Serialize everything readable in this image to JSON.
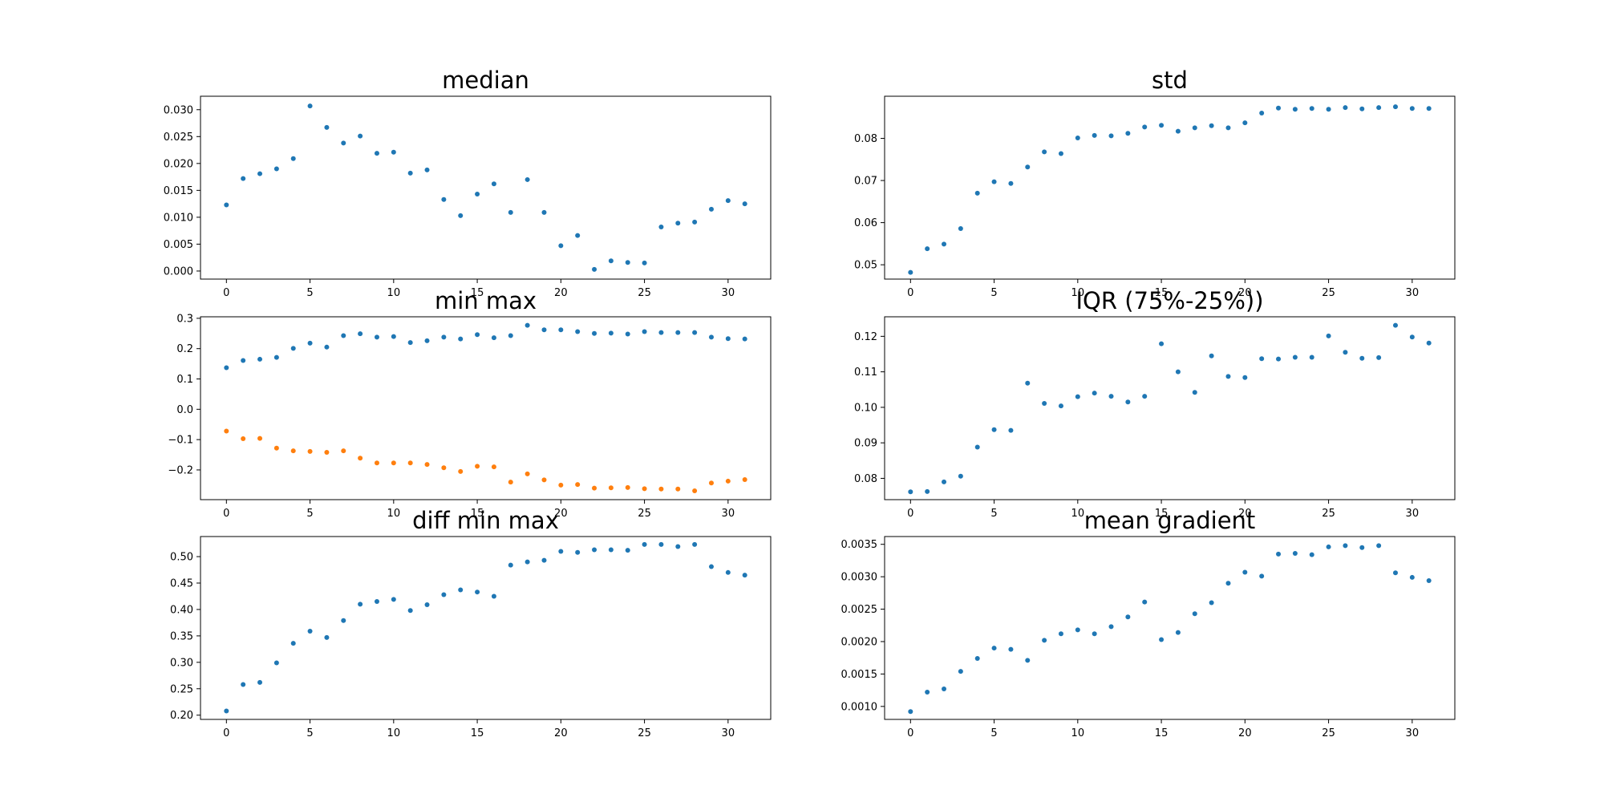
{
  "chart_data": [
    {
      "id": "median",
      "type": "scatter",
      "title": "median",
      "xlabel": "",
      "ylabel": "",
      "xlim": [
        -1.55,
        32.55
      ],
      "ylim": [
        -0.0015,
        0.0325
      ],
      "xticks": [
        0,
        5,
        10,
        15,
        20,
        25,
        30
      ],
      "xtick_labels": [
        "0",
        "5",
        "10",
        "15",
        "20",
        "25",
        "30"
      ],
      "yticks": [
        0.0,
        0.005,
        0.01,
        0.015,
        0.02,
        0.025,
        0.03
      ],
      "ytick_labels": [
        "0.000",
        "0.005",
        "0.010",
        "0.015",
        "0.020",
        "0.025",
        "0.030"
      ],
      "grid": false,
      "series": [
        {
          "color": "#1f77b4",
          "x": [
            0,
            1,
            2,
            3,
            4,
            5,
            6,
            7,
            8,
            9,
            10,
            11,
            12,
            13,
            14,
            15,
            16,
            17,
            18,
            19,
            20,
            21,
            22,
            23,
            24,
            25,
            26,
            27,
            28,
            29,
            30,
            31
          ],
          "y": [
            0.0123,
            0.0172,
            0.0181,
            0.019,
            0.0209,
            0.0307,
            0.0267,
            0.0238,
            0.0251,
            0.0219,
            0.0221,
            0.0182,
            0.0188,
            0.0133,
            0.0103,
            0.0143,
            0.0162,
            0.0109,
            0.017,
            0.0109,
            0.0047,
            0.0066,
            0.0003,
            0.0019,
            0.0016,
            0.0015,
            0.0082,
            0.0089,
            0.0091,
            0.0115,
            0.0131,
            0.0125
          ]
        }
      ]
    },
    {
      "id": "std",
      "type": "scatter",
      "title": "std",
      "xlabel": "",
      "ylabel": "",
      "xlim": [
        -1.55,
        32.55
      ],
      "ylim": [
        0.0466,
        0.09
      ],
      "xticks": [
        0,
        5,
        10,
        15,
        20,
        25,
        30
      ],
      "xtick_labels": [
        "0",
        "5",
        "10",
        "15",
        "20",
        "25",
        "30"
      ],
      "yticks": [
        0.05,
        0.06,
        0.07,
        0.08
      ],
      "ytick_labels": [
        "0.05",
        "0.06",
        "0.07",
        "0.08"
      ],
      "grid": false,
      "series": [
        {
          "color": "#1f77b4",
          "x": [
            0,
            1,
            2,
            3,
            4,
            5,
            6,
            7,
            8,
            9,
            10,
            11,
            12,
            13,
            14,
            15,
            16,
            17,
            18,
            19,
            20,
            21,
            22,
            23,
            24,
            25,
            26,
            27,
            28,
            29,
            30,
            31
          ],
          "y": [
            0.0482,
            0.0538,
            0.0549,
            0.0586,
            0.067,
            0.0697,
            0.0693,
            0.0732,
            0.0768,
            0.0764,
            0.0801,
            0.0807,
            0.0806,
            0.0812,
            0.0827,
            0.0831,
            0.0817,
            0.0825,
            0.083,
            0.0825,
            0.0837,
            0.086,
            0.0872,
            0.0869,
            0.0871,
            0.0869,
            0.0873,
            0.087,
            0.0873,
            0.0875,
            0.0871,
            0.0871
          ]
        }
      ]
    },
    {
      "id": "min-max",
      "type": "scatter",
      "title": "min max",
      "xlabel": "",
      "ylabel": "",
      "xlim": [
        -1.55,
        32.55
      ],
      "ylim": [
        -0.298,
        0.305
      ],
      "xticks": [
        0,
        5,
        10,
        15,
        20,
        25,
        30
      ],
      "xtick_labels": [
        "0",
        "5",
        "10",
        "15",
        "20",
        "25",
        "30"
      ],
      "yticks": [
        -0.2,
        -0.1,
        0.0,
        0.1,
        0.2,
        0.3
      ],
      "ytick_labels": [
        "−0.2",
        "−0.1",
        "0.0",
        "0.1",
        "0.2",
        "0.3"
      ],
      "grid": false,
      "series": [
        {
          "color": "#1f77b4",
          "x": [
            0,
            1,
            2,
            3,
            4,
            5,
            6,
            7,
            8,
            9,
            10,
            11,
            12,
            13,
            14,
            15,
            16,
            17,
            18,
            19,
            20,
            21,
            22,
            23,
            24,
            25,
            26,
            27,
            28,
            29,
            30,
            31
          ],
          "y": [
            0.137,
            0.161,
            0.165,
            0.171,
            0.201,
            0.218,
            0.205,
            0.243,
            0.249,
            0.238,
            0.24,
            0.22,
            0.226,
            0.238,
            0.232,
            0.246,
            0.236,
            0.243,
            0.277,
            0.262,
            0.262,
            0.256,
            0.25,
            0.251,
            0.248,
            0.256,
            0.253,
            0.253,
            0.253,
            0.238,
            0.233,
            0.232
          ]
        },
        {
          "color": "#ff7f0e",
          "x": [
            0,
            1,
            2,
            3,
            4,
            5,
            6,
            7,
            8,
            9,
            10,
            11,
            12,
            13,
            14,
            15,
            16,
            17,
            18,
            19,
            20,
            21,
            22,
            23,
            24,
            25,
            26,
            27,
            28,
            29,
            30,
            31
          ],
          "y": [
            -0.072,
            -0.097,
            -0.096,
            -0.128,
            -0.137,
            -0.139,
            -0.142,
            -0.137,
            -0.161,
            -0.177,
            -0.177,
            -0.177,
            -0.182,
            -0.193,
            -0.205,
            -0.188,
            -0.19,
            -0.24,
            -0.213,
            -0.233,
            -0.25,
            -0.248,
            -0.26,
            -0.259,
            -0.258,
            -0.262,
            -0.263,
            -0.263,
            -0.269,
            -0.243,
            -0.237,
            -0.232
          ]
        }
      ]
    },
    {
      "id": "iqr",
      "type": "scatter",
      "title": "IQR (75%-25%))",
      "xlabel": "",
      "ylabel": "",
      "xlim": [
        -1.55,
        32.55
      ],
      "ylim": [
        0.074,
        0.1255
      ],
      "xticks": [
        0,
        5,
        10,
        15,
        20,
        25,
        30
      ],
      "xtick_labels": [
        "0",
        "5",
        "10",
        "15",
        "20",
        "25",
        "30"
      ],
      "yticks": [
        0.08,
        0.09,
        0.1,
        0.11,
        0.12
      ],
      "ytick_labels": [
        "0.08",
        "0.09",
        "0.10",
        "0.11",
        "0.12"
      ],
      "grid": false,
      "series": [
        {
          "color": "#1f77b4",
          "x": [
            0,
            1,
            2,
            3,
            4,
            5,
            6,
            7,
            8,
            9,
            10,
            11,
            12,
            13,
            14,
            15,
            16,
            17,
            18,
            19,
            20,
            21,
            22,
            23,
            24,
            25,
            26,
            27,
            28,
            29,
            30,
            31
          ],
          "y": [
            0.0762,
            0.0763,
            0.079,
            0.0806,
            0.0888,
            0.0937,
            0.0935,
            0.1068,
            0.1011,
            0.1004,
            0.103,
            0.104,
            0.1031,
            0.1015,
            0.1031,
            0.1179,
            0.11,
            0.1042,
            0.1145,
            0.1087,
            0.1084,
            0.1137,
            0.1136,
            0.1141,
            0.1141,
            0.1201,
            0.1155,
            0.1138,
            0.114,
            0.1231,
            0.1198,
            0.1181
          ]
        }
      ]
    },
    {
      "id": "diff-min-max",
      "type": "scatter",
      "title": "diff min max",
      "xlabel": "",
      "ylabel": "",
      "xlim": [
        -1.55,
        32.55
      ],
      "ylim": [
        0.192,
        0.538
      ],
      "xticks": [
        0,
        5,
        10,
        15,
        20,
        25,
        30
      ],
      "xtick_labels": [
        "0",
        "5",
        "10",
        "15",
        "20",
        "25",
        "30"
      ],
      "yticks": [
        0.2,
        0.25,
        0.3,
        0.35,
        0.4,
        0.45,
        0.5
      ],
      "ytick_labels": [
        "0.20",
        "0.25",
        "0.30",
        "0.35",
        "0.40",
        "0.45",
        "0.50"
      ],
      "grid": false,
      "series": [
        {
          "color": "#1f77b4",
          "x": [
            0,
            1,
            2,
            3,
            4,
            5,
            6,
            7,
            8,
            9,
            10,
            11,
            12,
            13,
            14,
            15,
            16,
            17,
            18,
            19,
            20,
            21,
            22,
            23,
            24,
            25,
            26,
            27,
            28,
            29,
            30,
            31
          ],
          "y": [
            0.208,
            0.258,
            0.262,
            0.299,
            0.336,
            0.359,
            0.347,
            0.379,
            0.41,
            0.415,
            0.419,
            0.398,
            0.409,
            0.428,
            0.437,
            0.433,
            0.425,
            0.484,
            0.49,
            0.493,
            0.51,
            0.508,
            0.513,
            0.513,
            0.512,
            0.523,
            0.523,
            0.519,
            0.523,
            0.481,
            0.47,
            0.465
          ]
        }
      ]
    },
    {
      "id": "mean-gradient",
      "type": "scatter",
      "title": "mean gradient",
      "xlabel": "",
      "ylabel": "",
      "xlim": [
        -1.55,
        32.55
      ],
      "ylim": [
        0.0008,
        0.00362
      ],
      "xticks": [
        0,
        5,
        10,
        15,
        20,
        25,
        30
      ],
      "xtick_labels": [
        "0",
        "5",
        "10",
        "15",
        "20",
        "25",
        "30"
      ],
      "yticks": [
        0.001,
        0.0015,
        0.002,
        0.0025,
        0.003,
        0.0035
      ],
      "ytick_labels": [
        "0.0010",
        "0.0015",
        "0.0020",
        "0.0025",
        "0.0030",
        "0.0035"
      ],
      "grid": false,
      "series": [
        {
          "color": "#1f77b4",
          "x": [
            0,
            1,
            2,
            3,
            4,
            5,
            6,
            7,
            8,
            9,
            10,
            11,
            12,
            13,
            14,
            15,
            16,
            17,
            18,
            19,
            20,
            21,
            22,
            23,
            24,
            25,
            26,
            27,
            28,
            29,
            30,
            31
          ],
          "y": [
            0.00092,
            0.00122,
            0.00127,
            0.00154,
            0.00174,
            0.0019,
            0.00188,
            0.00171,
            0.00202,
            0.00212,
            0.00218,
            0.00212,
            0.00223,
            0.00238,
            0.00261,
            0.00203,
            0.00214,
            0.00243,
            0.0026,
            0.0029,
            0.00307,
            0.00301,
            0.00335,
            0.00336,
            0.00334,
            0.00346,
            0.00348,
            0.00345,
            0.00348,
            0.00306,
            0.00299,
            0.00294
          ]
        }
      ]
    }
  ]
}
